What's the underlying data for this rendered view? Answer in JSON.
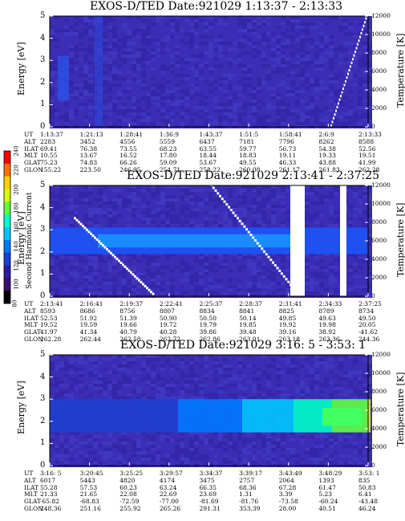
{
  "figures": [
    {
      "title": "EXOS-D/TED   Date:921029  1:13:37 - 2:13:33",
      "ylabel_left": "Energy [eV]",
      "ylabel_right": "Temperature [K]",
      "columns": [
        [
          "1:13:37",
          "2283",
          "69.41",
          "10.55",
          "75.23",
          "155.22"
        ],
        [
          "1:21:13",
          "3452",
          "76.38",
          "13.67",
          "74.83",
          "223.50"
        ],
        [
          "1:28:41",
          "4556",
          "73.55",
          "16.52",
          "66.26",
          "246.95"
        ],
        [
          "1:36:9",
          "5559",
          "68.23",
          "17.80",
          "59.09",
          "254.71"
        ],
        [
          "1:43:37",
          "6437",
          "63.55",
          "18.44",
          "53.67",
          "258.22"
        ],
        [
          "1:51:5",
          "7181",
          "59.77",
          "18.83",
          "49.55",
          "260.08"
        ],
        [
          "1:58:41",
          "7796",
          "56.73",
          "19.11",
          "46.33",
          "261.17"
        ],
        [
          "2:6:9",
          "8262",
          "54.38",
          "19.33",
          "43.88",
          "261.83"
        ],
        [
          "2:13:33",
          "8588",
          "52.56",
          "19.51",
          "41.99",
          "262.28"
        ]
      ]
    },
    {
      "title": "EXOS-D/TED   Date:921029  2:13:41 - 2:37:25",
      "ylabel_left": "Energy [eV]",
      "ylabel_right": "Temperature [K]",
      "columns": [
        [
          "2:13:41",
          "8593",
          "52.53",
          "19.52",
          "41.97",
          "262.28"
        ],
        [
          "2:16:41",
          "8686",
          "51.92",
          "19.59",
          "41.34",
          "262.44"
        ],
        [
          "2:19:37",
          "8756",
          "51.39",
          "19.66",
          "40.79",
          "262.58"
        ],
        [
          "2:22:41",
          "8807",
          "50.90",
          "19.72",
          "40.28",
          "262.72"
        ],
        [
          "2:25:37",
          "8834",
          "50.50",
          "19.79",
          "39.86",
          "262.86"
        ],
        [
          "2:28:37",
          "8841",
          "50.14",
          "19.85",
          "39.48",
          "263.01"
        ],
        [
          "2:31:41",
          "8825",
          "49.85",
          "19.92",
          "39.16",
          "263.18"
        ],
        [
          "2:34:33",
          "8789",
          "49.63",
          "19.98",
          "38.92",
          "263.36"
        ],
        [
          "2:37:25",
          "8734",
          "49.50",
          "20.05",
          "-41.62",
          "244.36"
        ]
      ]
    },
    {
      "title": "EXOS-D/TED   Date:921029  3:16: 5 - 3:53: 1",
      "ylabel_left": "Energy [eV]",
      "ylabel_right": "Temperature [K]",
      "columns": [
        [
          "3:16: 5",
          "6017",
          "55.28",
          "21.33",
          "-65.82",
          "248.36"
        ],
        [
          "3:20:45",
          "5443",
          "57.53",
          "21.65",
          "-68.83",
          "251.16"
        ],
        [
          "3:25:25",
          "4820",
          "60.23",
          "22.08",
          "-72.59",
          "255.92"
        ],
        [
          "3:29:57",
          "4174",
          "63.24",
          "22.69",
          "-77.00",
          "265.26"
        ],
        [
          "3:34:37",
          "3475",
          "66.35",
          "23.69",
          "-81.69",
          "291.31"
        ],
        [
          "3:39:17",
          "2757",
          "68.36",
          "1.31",
          "-81.76",
          "353.39"
        ],
        [
          "3:43:49",
          "2064",
          "67.28",
          "3.39",
          "-73.58",
          "28.00"
        ],
        [
          "3:48:29",
          "1393",
          "61.47",
          "5.23",
          "-60.24",
          "40.51"
        ],
        [
          "3:53: 1",
          "835",
          "50.83",
          "6.41",
          "-43.48",
          "46.24"
        ]
      ]
    }
  ],
  "row_labels": [
    "UT",
    "ALT",
    "ILAT",
    "MLT",
    "GLAT",
    "GLON"
  ],
  "colorbar": {
    "label": "Second Harmonic Current",
    "ticks": [
      "80",
      "100",
      "120",
      "140",
      "160",
      "180",
      "200",
      "220",
      "240"
    ],
    "colors": [
      "#000000",
      "#3b0f70",
      "#2a1e9e",
      "#1f3fd0",
      "#0078ff",
      "#00c8ff",
      "#00ffc8",
      "#60ff40",
      "#d8ff00",
      "#ffd000",
      "#ff7000",
      "#ff0000"
    ]
  },
  "chart_data": [
    {
      "type": "heatmap",
      "title": "EXOS-D/TED   Date:921029  1:13:37 - 2:13:33",
      "xlabel": "UT",
      "ylabel": "Energy [eV]",
      "y2label": "Temperature [K]",
      "x_ticks": [
        "1:13:37",
        "1:21:13",
        "1:28:41",
        "1:36:9",
        "1:43:37",
        "1:51:5",
        "1:58:41",
        "2:6:9",
        "2:13:33"
      ],
      "y_ticks": [
        0,
        1,
        2,
        3,
        4,
        5
      ],
      "y2_ticks": [
        0,
        2000,
        4000,
        6000,
        8000,
        10000,
        12000
      ],
      "ylim": [
        0,
        5
      ],
      "y2lim": [
        0,
        12000
      ],
      "z_range": [
        80,
        240
      ],
      "background_level": 120,
      "features": [
        {
          "desc": "enhanced band",
          "x_from": "1:13:37",
          "x_to": "1:21:13",
          "energy_eV": [
            1.5,
            3.0
          ],
          "level": 150
        },
        {
          "desc": "diagonal white trace",
          "x_from": "1:58:41",
          "x_to": "2:13:33",
          "energy_eV": [
            0,
            5
          ]
        }
      ]
    },
    {
      "type": "heatmap",
      "title": "EXOS-D/TED   Date:921029  2:13:41 - 2:37:25",
      "xlabel": "UT",
      "ylabel": "Energy [eV]",
      "y2label": "Temperature [K]",
      "x_ticks": [
        "2:13:41",
        "2:16:41",
        "2:19:37",
        "2:22:41",
        "2:25:37",
        "2:28:37",
        "2:31:41",
        "2:34:33",
        "2:37:25"
      ],
      "y_ticks": [
        0,
        1,
        2,
        3,
        4,
        5
      ],
      "y2_ticks": [
        0,
        2000,
        4000,
        6000,
        8000,
        10000,
        12000
      ],
      "ylim": [
        0,
        5
      ],
      "y2lim": [
        0,
        12000
      ],
      "z_range": [
        80,
        240
      ],
      "background_level": 125,
      "features": [
        {
          "desc": "bright band",
          "x_from": "2:13:41",
          "x_to": "2:31:41",
          "energy_eV": [
            2.0,
            3.0
          ],
          "level": 160
        },
        {
          "desc": "data gap",
          "x_from": "2:31:00",
          "x_to": "2:32:30"
        },
        {
          "desc": "data gap",
          "x_from": "2:35:00",
          "x_to": "2:35:40"
        }
      ]
    },
    {
      "type": "heatmap",
      "title": "EXOS-D/TED   Date:921029  3:16: 5 - 3:53: 1",
      "xlabel": "UT",
      "ylabel": "Energy [eV]",
      "y2label": "Temperature [K]",
      "x_ticks": [
        "3:16: 5",
        "3:20:45",
        "3:25:25",
        "3:29:57",
        "3:34:37",
        "3:39:17",
        "3:43:49",
        "3:48:29",
        "3:53: 1"
      ],
      "y_ticks": [
        0,
        1,
        2,
        3,
        4,
        5
      ],
      "y2_ticks": [
        0,
        2000,
        4000,
        6000,
        8000,
        10000,
        12000
      ],
      "ylim": [
        0,
        5
      ],
      "y2lim": [
        0,
        12000
      ],
      "z_range": [
        80,
        240
      ],
      "background_level": 115,
      "features": [
        {
          "desc": "intensifying band",
          "x_from": "3:43:49",
          "x_to": "3:53: 1",
          "energy_eV": [
            1.5,
            3.0
          ],
          "level": 180
        }
      ]
    }
  ]
}
